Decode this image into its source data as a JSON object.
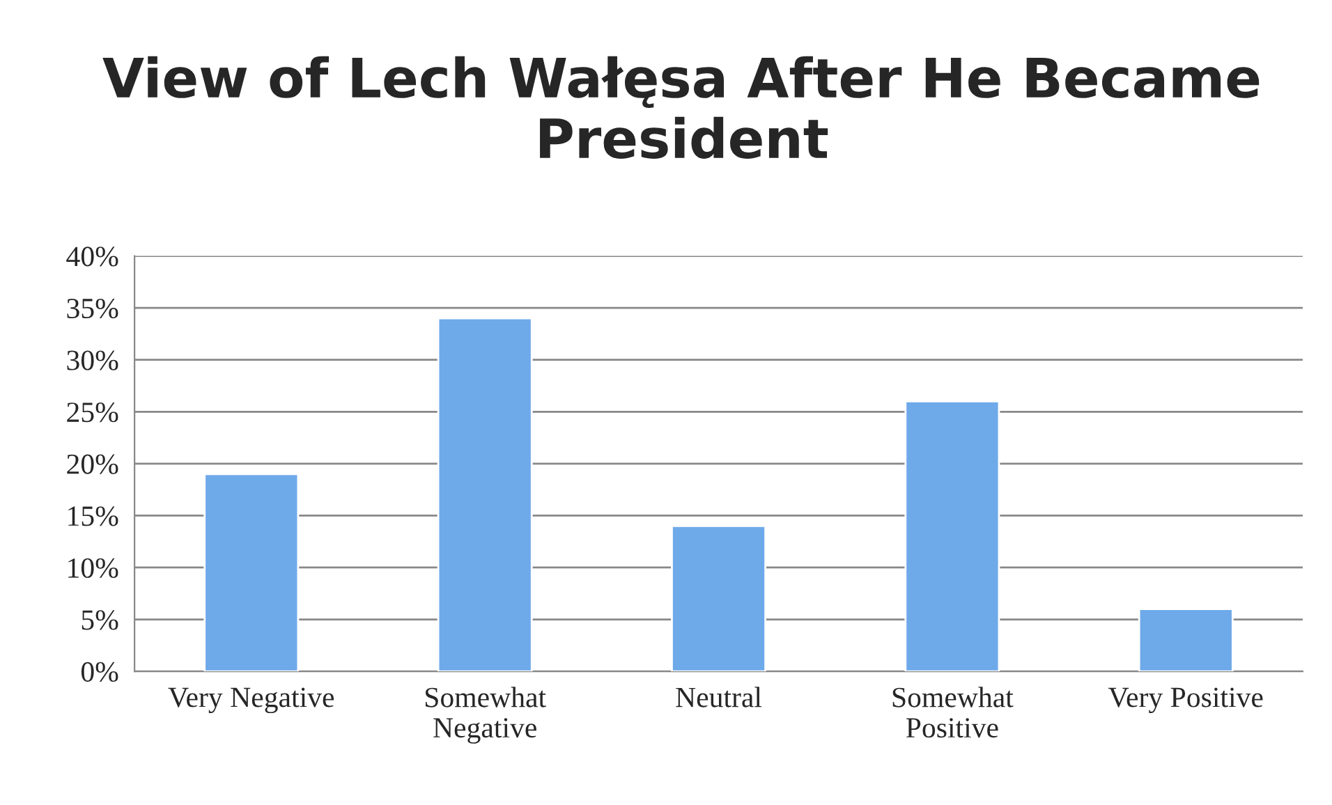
{
  "chart_data": {
    "type": "bar",
    "title": "View of Lech Wałęsa After He Became President",
    "categories": [
      "Very Negative",
      "Somewhat\nNegative",
      "Neutral",
      "Somewhat\nPositive",
      "Very Positive"
    ],
    "values": [
      19,
      34,
      14,
      26,
      6
    ],
    "color": "#6ea9ea",
    "ylim": [
      0,
      40
    ],
    "yticks": [
      {
        "value": 0,
        "label": "0%"
      },
      {
        "value": 5,
        "label": "5%"
      },
      {
        "value": 10,
        "label": "10%"
      },
      {
        "value": 15,
        "label": "15%"
      },
      {
        "value": 20,
        "label": "20%"
      },
      {
        "value": 25,
        "label": "25%"
      },
      {
        "value": 30,
        "label": "30%"
      },
      {
        "value": 35,
        "label": "35%"
      },
      {
        "value": 40,
        "label": "40%"
      }
    ],
    "grid": "y",
    "legend": false
  }
}
